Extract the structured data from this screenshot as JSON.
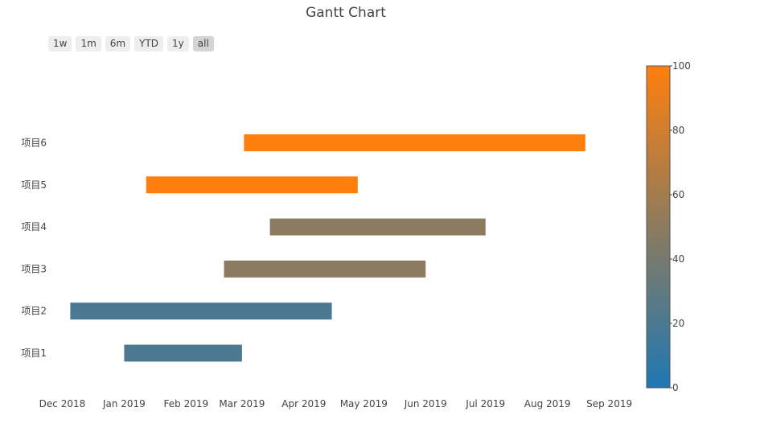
{
  "chart_data": {
    "type": "gantt",
    "title": "Gantt Chart",
    "range_buttons": [
      {
        "label": "1w",
        "active": false
      },
      {
        "label": "1m",
        "active": false
      },
      {
        "label": "6m",
        "active": false
      },
      {
        "label": "YTD",
        "active": false
      },
      {
        "label": "1y",
        "active": false
      },
      {
        "label": "all",
        "active": true
      }
    ],
    "xlim": [
      "2018-11-28",
      "2019-09-08"
    ],
    "x_ticks": [
      {
        "date": "2018-12-01",
        "label": "Dec 2018"
      },
      {
        "date": "2019-01-01",
        "label": "Jan 2019"
      },
      {
        "date": "2019-02-01",
        "label": "Feb 2019"
      },
      {
        "date": "2019-03-01",
        "label": "Mar 2019"
      },
      {
        "date": "2019-04-01",
        "label": "Apr 2019"
      },
      {
        "date": "2019-05-01",
        "label": "May 2019"
      },
      {
        "date": "2019-06-01",
        "label": "Jun 2019"
      },
      {
        "date": "2019-07-01",
        "label": "Jul 2019"
      },
      {
        "date": "2019-08-01",
        "label": "Aug 2019"
      },
      {
        "date": "2019-09-01",
        "label": "Sep 2019"
      }
    ],
    "tasks": [
      {
        "name": "项目1",
        "start": "2019-01-01",
        "end": "2019-03-01",
        "value": 20
      },
      {
        "name": "项目2",
        "start": "2018-12-05",
        "end": "2019-04-15",
        "value": 20
      },
      {
        "name": "项目3",
        "start": "2019-02-20",
        "end": "2019-06-01",
        "value": 50
      },
      {
        "name": "项目4",
        "start": "2019-03-15",
        "end": "2019-07-01",
        "value": 50
      },
      {
        "name": "项目5",
        "start": "2019-01-12",
        "end": "2019-04-28",
        "value": 100
      },
      {
        "name": "项目6",
        "start": "2019-03-02",
        "end": "2019-08-20",
        "value": 100
      }
    ],
    "colorbar": {
      "range": [
        0,
        100
      ],
      "ticks": [
        0,
        20,
        40,
        60,
        80,
        100
      ],
      "color_low": "#1f77b4",
      "color_mid": "#8c7b5e",
      "color_high": "#ff7f0e"
    }
  }
}
